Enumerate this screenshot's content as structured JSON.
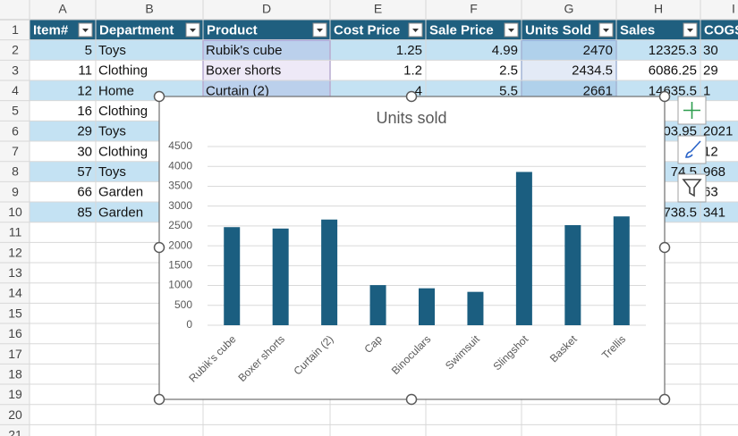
{
  "sheet": {
    "column_letters": [
      "A",
      "B",
      "D",
      "E",
      "F",
      "G",
      "H",
      "I"
    ],
    "row_numbers": [
      1,
      2,
      3,
      4,
      5,
      6,
      7,
      8,
      9,
      10,
      11,
      12,
      13,
      14,
      15,
      16,
      17,
      18,
      19,
      20,
      21
    ],
    "header": [
      "Item#",
      "Department",
      "Product",
      "Cost Price",
      "Sale Price",
      "Units Sold",
      "Sales",
      "COGS"
    ],
    "rows": [
      [
        "5",
        "Toys",
        "Rubik's cube",
        "1.25",
        "4.99",
        "2470",
        "12325.3",
        "30"
      ],
      [
        "11",
        "Clothing",
        "Boxer shorts",
        "1.2",
        "2.5",
        "2434.5",
        "6086.25",
        "29"
      ],
      [
        "12",
        "Home",
        "Curtain (2)",
        "4",
        "5.5",
        "2661",
        "14635.5",
        "1"
      ],
      [
        "16",
        "Clothing",
        null,
        null,
        null,
        null,
        "25",
        null
      ],
      [
        "29",
        "Toys",
        null,
        null,
        null,
        null,
        "03.95",
        "2021"
      ],
      [
        "30",
        "Clothing",
        null,
        null,
        null,
        null,
        "2",
        "12"
      ],
      [
        "57",
        "Toys",
        null,
        null,
        null,
        null,
        "74.5",
        "968"
      ],
      [
        "66",
        "Garden",
        null,
        null,
        null,
        null,
        "5",
        "63"
      ],
      [
        "85",
        "Garden",
        null,
        null,
        null,
        null,
        "738.5",
        "341"
      ]
    ]
  },
  "chart_data": {
    "type": "bar",
    "title": "Units sold",
    "categories": [
      "Rubik's cube",
      "Boxer shorts",
      "Curtain (2)",
      "Cap",
      "Binoculars",
      "Swimsuit",
      "Slingshot",
      "Basket",
      "Trellis"
    ],
    "values": [
      2470,
      2434.5,
      2661,
      1010,
      930,
      840,
      3860,
      2520,
      2740
    ],
    "color": "#1b5e80",
    "ylim": [
      0,
      4500
    ],
    "yticks": [
      0,
      500,
      1000,
      1500,
      2000,
      2500,
      3000,
      3500,
      4000,
      4500
    ],
    "grid": true
  }
}
